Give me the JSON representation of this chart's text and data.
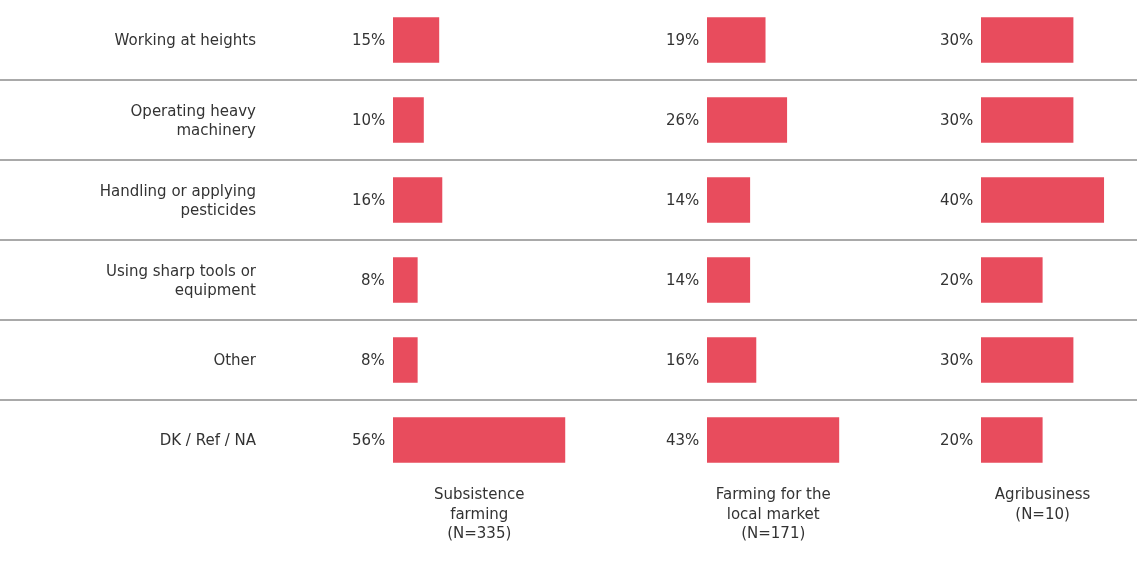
{
  "chart_data": [
    {
      "type": "bar",
      "orientation": "horizontal",
      "categories": [
        "Working at heights",
        "Operating heavy\nmachinery",
        "Handling or applying\npesticides",
        "Using sharp tools or\nequipment",
        "Other",
        "DK / Ref / NA"
      ],
      "values": [
        15,
        10,
        16,
        8,
        8,
        56
      ],
      "value_labels": [
        "15%",
        "10%",
        "16%",
        "8%",
        "8%",
        "56%"
      ],
      "color": "#e84c5d",
      "xlabel": "Subsistence\nfarming\n(N=335)",
      "tick_labels": "y"
    },
    {
      "type": "bar",
      "orientation": "horizontal",
      "categories": [
        null,
        null,
        null,
        null,
        null,
        null
      ],
      "values": [
        19,
        26,
        14,
        14,
        16,
        43
      ],
      "value_labels": [
        "19%",
        "26%",
        "14%",
        "14%",
        "16%",
        "43%"
      ],
      "color": "#e84c5d",
      "xlabel": "Farming for the\nlocal market\n(N=171)",
      "tick_labels": false
    },
    {
      "type": "bar",
      "orientation": "horizontal",
      "categories": [
        null,
        null,
        null,
        null,
        null,
        null
      ],
      "values": [
        30,
        30,
        40,
        20,
        30,
        20
      ],
      "value_labels": [
        "30%",
        "30%",
        "40%",
        "20%",
        "30%",
        "20%"
      ],
      "color": "#e84c5d",
      "xlabel": "Agribusiness\n(N=10)",
      "tick_labels": false
    }
  ]
}
